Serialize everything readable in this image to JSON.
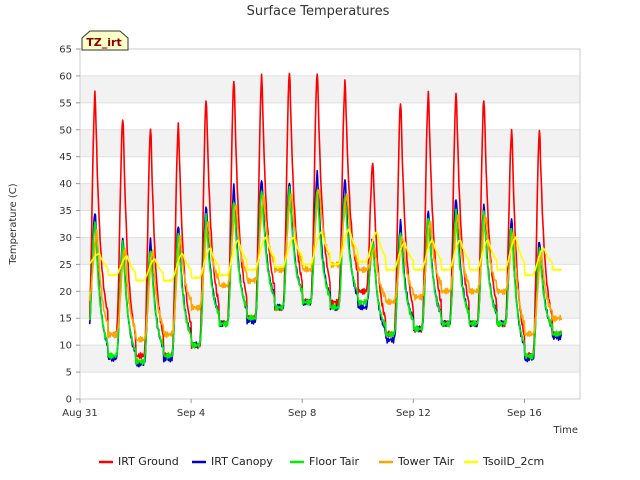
{
  "chart_data": {
    "type": "line",
    "title": "Surface Temperatures",
    "xlabel": "Time",
    "ylabel": "Temperature (C)",
    "badge": "TZ_irt",
    "ylim": [
      0,
      65
    ],
    "yticks": [
      0,
      5,
      10,
      15,
      20,
      25,
      30,
      35,
      40,
      45,
      50,
      55,
      60,
      65
    ],
    "xlim": [
      "2023-08-31",
      "2023-09-18"
    ],
    "xticks": [
      {
        "date": "2023-08-31",
        "label": "Aug 31"
      },
      {
        "date": "2023-09-04",
        "label": "Sep 4"
      },
      {
        "date": "2023-09-08",
        "label": "Sep 8"
      },
      {
        "date": "2023-09-12",
        "label": "Sep 12"
      },
      {
        "date": "2023-09-16",
        "label": "Sep 16"
      }
    ],
    "grid": true,
    "legend_position": "bottom",
    "x_dates": [
      "2023-08-31",
      "2023-09-01",
      "2023-09-02",
      "2023-09-03",
      "2023-09-04",
      "2023-09-05",
      "2023-09-06",
      "2023-09-07",
      "2023-09-08",
      "2023-09-09",
      "2023-09-10",
      "2023-09-11",
      "2023-09-12",
      "2023-09-13",
      "2023-09-14",
      "2023-09-15",
      "2023-09-16",
      "2023-09-17"
    ],
    "series": [
      {
        "name": "IRT Ground",
        "color": "#ff0000",
        "daily_min": [
          12,
          12,
          8,
          8,
          10,
          14,
          15,
          17,
          18,
          18,
          20,
          12,
          13,
          14,
          14,
          14,
          8,
          12
        ],
        "daily_max": [
          57,
          52.5,
          50.5,
          51,
          56,
          59.5,
          60,
          61,
          61,
          59,
          44,
          55.5,
          57,
          57,
          56,
          50,
          50,
          50
        ]
      },
      {
        "name": "IRT Canopy",
        "color": "#0000cc",
        "daily_min": [
          12,
          7.5,
          6.5,
          7.5,
          10,
          14,
          14.5,
          17,
          18,
          17,
          17,
          11,
          13,
          14,
          14,
          14,
          7.5,
          11.5
        ],
        "daily_max": [
          35,
          30,
          29.5,
          32.5,
          36,
          39.5,
          41,
          40.5,
          42,
          41,
          30,
          33,
          35,
          37.5,
          36,
          33.5,
          29.5,
          29.5
        ]
      },
      {
        "name": "Floor Tair",
        "color": "#00ee00",
        "daily_min": [
          13,
          8,
          7,
          8,
          10,
          14,
          15,
          17,
          18,
          17,
          18,
          12,
          13,
          14,
          14,
          14,
          8,
          12
        ],
        "daily_max": [
          33,
          29,
          28,
          31,
          34,
          37,
          39,
          39,
          39,
          38,
          29,
          31,
          34,
          35,
          35,
          32,
          28,
          28
        ]
      },
      {
        "name": "Tower TAir",
        "color": "#ffa500",
        "daily_min": [
          18,
          12,
          11,
          12,
          17,
          21,
          22,
          24,
          24,
          25,
          24,
          18,
          19,
          20,
          20,
          20,
          12,
          15
        ],
        "daily_max": [
          31,
          28,
          27.5,
          30,
          33,
          36,
          37.5,
          38,
          39,
          38,
          28,
          30,
          33,
          34,
          34,
          31,
          27,
          27
        ]
      },
      {
        "name": "TsoilD_2cm",
        "color": "#ffff00",
        "daily_min": [
          25,
          23,
          22,
          22,
          22.5,
          23,
          24,
          24.5,
          25,
          25,
          25.5,
          24,
          24,
          24,
          24,
          24,
          23,
          24
        ],
        "daily_max": [
          27,
          26.5,
          26,
          27,
          28,
          29.5,
          30,
          30,
          31,
          31.5,
          31,
          29,
          29.5,
          29.5,
          29.5,
          30,
          28,
          27
        ]
      }
    ]
  }
}
